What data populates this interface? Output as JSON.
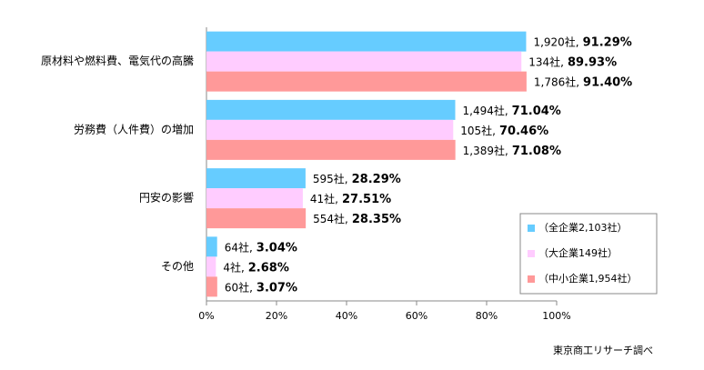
{
  "chart_data": {
    "type": "hbar",
    "categories": [
      "原材料や燃料費、電気代の高騰",
      "労務費（人件費）の増加",
      "円安の影響",
      "その他"
    ],
    "series": [
      {
        "name": "（全企業2,103社）",
        "color": "#66ccff",
        "values": [
          91.29,
          71.04,
          28.29,
          3.04
        ],
        "count_labels": [
          "1,920社,",
          "1,494社,",
          "595社,",
          "64社,"
        ],
        "value_labels": [
          "91.29%",
          "71.04%",
          "28.29%",
          "3.04%"
        ]
      },
      {
        "name": "（大企業149社）",
        "color": "#ffccff",
        "values": [
          89.93,
          70.46,
          27.51,
          2.68
        ],
        "count_labels": [
          "134社,",
          "105社,",
          "41社,",
          "4社,"
        ],
        "value_labels": [
          "89.93%",
          "70.46%",
          "27.51%",
          "2.68%"
        ]
      },
      {
        "name": "（中小企業1,954社）",
        "color": "#ff9999",
        "values": [
          91.4,
          71.08,
          28.35,
          3.07
        ],
        "count_labels": [
          "1,786社,",
          "1,389社,",
          "554社,",
          "60社,"
        ],
        "value_labels": [
          "91.40%",
          "71.08%",
          "28.35%",
          "3.07%"
        ]
      }
    ],
    "xlim": [
      0,
      100
    ],
    "xticks": [
      {
        "value": 0,
        "label": "0%"
      },
      {
        "value": 20,
        "label": "20%"
      },
      {
        "value": 40,
        "label": "40%"
      },
      {
        "value": 60,
        "label": "60%"
      },
      {
        "value": 80,
        "label": "80%"
      },
      {
        "value": 100,
        "label": "100%"
      }
    ],
    "grid": false,
    "legend": "lower-right",
    "source": "東京商工リサーチ調べ"
  }
}
